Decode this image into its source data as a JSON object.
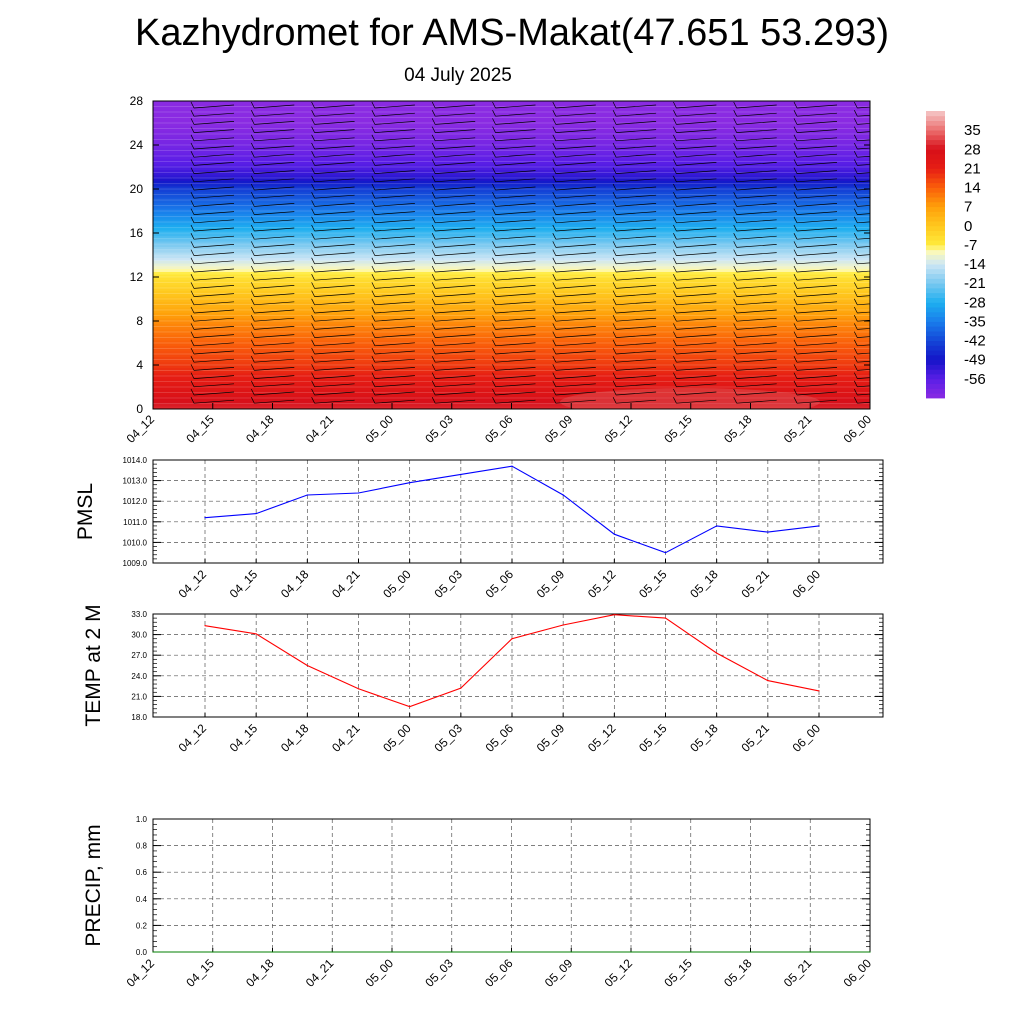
{
  "title": "Kazhydromet for AMS-Makat(47.651 53.293)",
  "subtitle": "04 July 2025",
  "colors": {
    "pmsl_line": "#0000ff",
    "temp_line": "#ff0000",
    "precip_line": "#007f00",
    "grid": "#555555"
  },
  "chart_data": [
    {
      "type": "heatmap",
      "name": "cross-section",
      "title": "",
      "xlabel": "",
      "ylabel": "",
      "x_ticks": [
        "04_12",
        "04_15",
        "04_18",
        "04_21",
        "05_00",
        "05_03",
        "05_06",
        "05_09",
        "05_12",
        "05_15",
        "05_18",
        "05_21",
        "06_00"
      ],
      "y_ticks": [
        0,
        4,
        8,
        12,
        16,
        20,
        24,
        28
      ],
      "ylim": [
        0,
        28
      ],
      "colorbar": {
        "labels": [
          35,
          28,
          21,
          14,
          7,
          0,
          -7,
          -14,
          -21,
          -28,
          -35,
          -42,
          -49,
          -56
        ],
        "range": [
          -63,
          42
        ]
      },
      "profile": {
        "levels": [
          0,
          2,
          4,
          6,
          8,
          10,
          12,
          13,
          14,
          16,
          18,
          20,
          21,
          22,
          24,
          26,
          28
        ],
        "values": [
          30,
          24,
          18,
          14,
          9,
          2,
          -5,
          -11,
          -16,
          -26,
          -35,
          -43,
          -51,
          -55,
          -60,
          -63,
          -63
        ]
      },
      "has_wind_barbs": true
    },
    {
      "type": "line",
      "name": "PMSL",
      "ylabel": "PMSL",
      "categories": [
        "04_12",
        "04_15",
        "04_18",
        "04_21",
        "05_00",
        "05_03",
        "05_06",
        "05_09",
        "05_12",
        "05_15",
        "05_18",
        "05_21",
        "06_00"
      ],
      "values": [
        1011.2,
        1011.4,
        1012.3,
        1012.4,
        1012.9,
        1013.3,
        1013.7,
        1012.3,
        1010.4,
        1009.5,
        1010.8,
        1010.5,
        1010.8
      ],
      "ylim": [
        1009.0,
        1014.0
      ],
      "y_ticks": [
        "1009.0",
        "1010.0",
        "1011.0",
        "1012.0",
        "1013.0",
        "1014.0"
      ],
      "grid": true
    },
    {
      "type": "line",
      "name": "TEMP",
      "ylabel": "TEMP at 2 M",
      "categories": [
        "04_12",
        "04_15",
        "04_18",
        "04_21",
        "05_00",
        "05_03",
        "05_06",
        "05_09",
        "05_12",
        "05_15",
        "05_18",
        "05_21",
        "06_00"
      ],
      "values": [
        31.3,
        30.1,
        25.5,
        22.1,
        19.5,
        22.2,
        29.4,
        31.4,
        32.9,
        32.4,
        27.3,
        23.3,
        21.8
      ],
      "ylim": [
        18.0,
        33.0
      ],
      "y_ticks": [
        "18.0",
        "21.0",
        "24.0",
        "27.0",
        "30.0",
        "33.0"
      ],
      "grid": true
    },
    {
      "type": "line",
      "name": "PRECIP",
      "ylabel": "PRECIP, mm",
      "categories": [
        "04_12",
        "04_15",
        "04_18",
        "04_21",
        "05_00",
        "05_03",
        "05_06",
        "05_09",
        "05_12",
        "05_15",
        "05_18",
        "05_21",
        "06_00"
      ],
      "values": [
        0,
        0,
        0,
        0,
        0,
        0,
        0,
        0,
        0,
        0,
        0,
        0,
        0
      ],
      "ylim": [
        0.0,
        1.0
      ],
      "y_ticks": [
        "0.0",
        "0.2",
        "0.4",
        "0.6",
        "0.8",
        "1.0"
      ],
      "grid": true
    }
  ]
}
